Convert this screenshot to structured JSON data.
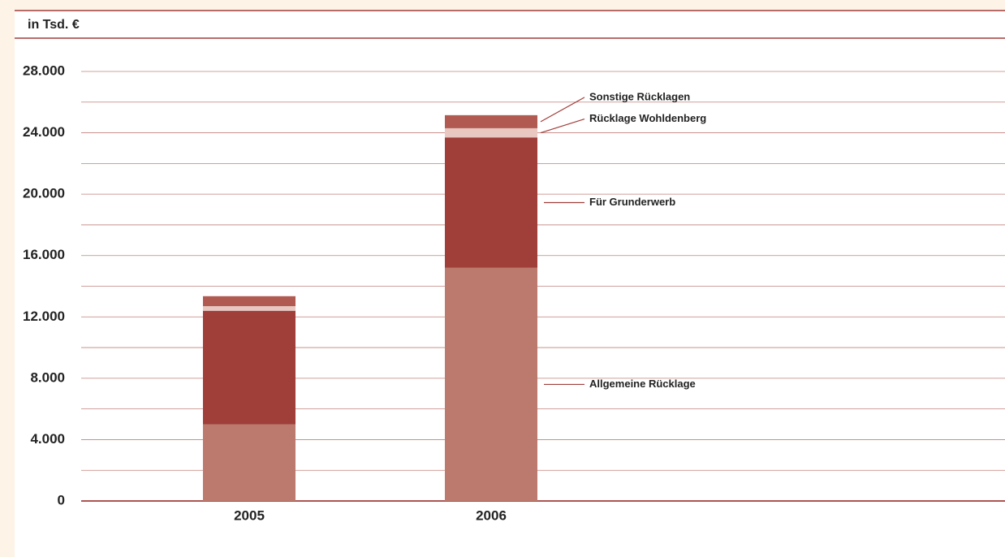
{
  "chart_data": {
    "type": "stacked_bar",
    "axis_title": "in Tsd. €",
    "categories": [
      "2005",
      "2006"
    ],
    "series": [
      {
        "name": "Allgemeine Rücklage",
        "color": "#bc7a6e",
        "values": [
          5000,
          15200
        ]
      },
      {
        "name": "Für Grunderwerb",
        "color": "#a03e3a",
        "values": [
          7400,
          8500
        ]
      },
      {
        "name": "Rücklage Wohldenberg",
        "color": "#e8c8c0",
        "values": [
          300,
          600
        ]
      },
      {
        "name": "Sonstige Rücklagen",
        "color": "#b05a52",
        "values": [
          650,
          850
        ]
      }
    ],
    "ylim": [
      0,
      28000
    ],
    "yticks": [
      0,
      {
        "value": 4000,
        "label": "4.000"
      },
      {
        "value": 8000,
        "label": "8.000"
      },
      {
        "value": 12000,
        "label": "12.000"
      },
      {
        "value": 16000,
        "label": "16.000"
      },
      {
        "value": 20000,
        "label": "20.000"
      },
      {
        "value": 24000,
        "label": "24.000"
      },
      {
        "value": 28000,
        "label": "28.000"
      }
    ],
    "minor_yticks": [
      2000,
      6000,
      10000,
      14000,
      18000,
      22000,
      26000
    ],
    "grid": true
  }
}
